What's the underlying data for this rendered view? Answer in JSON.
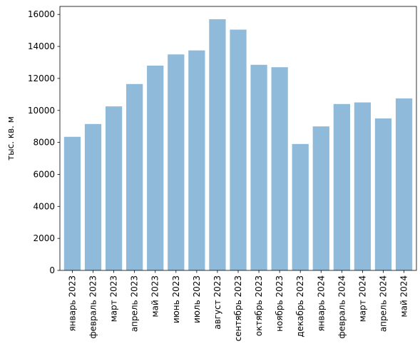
{
  "chart_data": {
    "type": "bar",
    "title": "",
    "xlabel": "",
    "ylabel": "тыс. кв. м",
    "ylim": [
      0,
      16500
    ],
    "yticks": [
      0,
      2000,
      4000,
      6000,
      8000,
      10000,
      12000,
      14000,
      16000
    ],
    "grid": false,
    "bar_color": "#8fbad9",
    "categories": [
      "январь 2023",
      "февраль 2023",
      "март 2023",
      "апрель 2023",
      "май 2023",
      "июнь 2023",
      "июль 2023",
      "август 2023",
      "сентябрь 2023",
      "октябрь 2023",
      "ноябрь 2023",
      "декабрь 2023",
      "январь 2024",
      "февраль 2024",
      "март 2024",
      "апрель 2024",
      "май 2024"
    ],
    "values": [
      8350,
      9150,
      10250,
      11650,
      12800,
      13500,
      13750,
      15700,
      15050,
      12850,
      12700,
      7900,
      9000,
      10400,
      10500,
      9500,
      10750
    ]
  }
}
